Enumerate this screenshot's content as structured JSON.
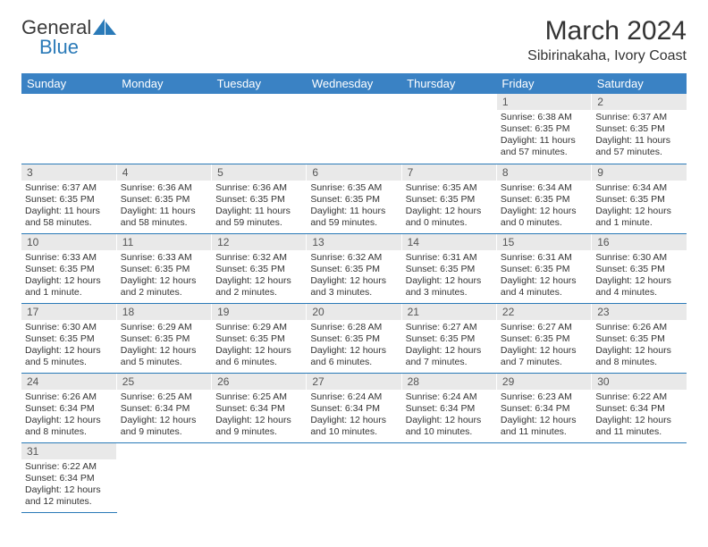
{
  "brand": {
    "part1": "General",
    "part2": "Blue"
  },
  "title": "March 2024",
  "location": "Sibirinakaha, Ivory Coast",
  "colors": {
    "header_bg": "#3a82c4",
    "header_text": "#ffffff",
    "row_divider": "#2a7ab8",
    "daynum_bg": "#e9e9e9",
    "text": "#333333",
    "brand_blue": "#2a7ab8",
    "brand_gray": "#3a3a3a",
    "background": "#ffffff"
  },
  "day_labels": [
    "Sunday",
    "Monday",
    "Tuesday",
    "Wednesday",
    "Thursday",
    "Friday",
    "Saturday"
  ],
  "weeks": [
    [
      null,
      null,
      null,
      null,
      null,
      {
        "n": "1",
        "sunrise": "6:38 AM",
        "sunset": "6:35 PM",
        "daylight": "11 hours and 57 minutes."
      },
      {
        "n": "2",
        "sunrise": "6:37 AM",
        "sunset": "6:35 PM",
        "daylight": "11 hours and 57 minutes."
      }
    ],
    [
      {
        "n": "3",
        "sunrise": "6:37 AM",
        "sunset": "6:35 PM",
        "daylight": "11 hours and 58 minutes."
      },
      {
        "n": "4",
        "sunrise": "6:36 AM",
        "sunset": "6:35 PM",
        "daylight": "11 hours and 58 minutes."
      },
      {
        "n": "5",
        "sunrise": "6:36 AM",
        "sunset": "6:35 PM",
        "daylight": "11 hours and 59 minutes."
      },
      {
        "n": "6",
        "sunrise": "6:35 AM",
        "sunset": "6:35 PM",
        "daylight": "11 hours and 59 minutes."
      },
      {
        "n": "7",
        "sunrise": "6:35 AM",
        "sunset": "6:35 PM",
        "daylight": "12 hours and 0 minutes."
      },
      {
        "n": "8",
        "sunrise": "6:34 AM",
        "sunset": "6:35 PM",
        "daylight": "12 hours and 0 minutes."
      },
      {
        "n": "9",
        "sunrise": "6:34 AM",
        "sunset": "6:35 PM",
        "daylight": "12 hours and 1 minute."
      }
    ],
    [
      {
        "n": "10",
        "sunrise": "6:33 AM",
        "sunset": "6:35 PM",
        "daylight": "12 hours and 1 minute."
      },
      {
        "n": "11",
        "sunrise": "6:33 AM",
        "sunset": "6:35 PM",
        "daylight": "12 hours and 2 minutes."
      },
      {
        "n": "12",
        "sunrise": "6:32 AM",
        "sunset": "6:35 PM",
        "daylight": "12 hours and 2 minutes."
      },
      {
        "n": "13",
        "sunrise": "6:32 AM",
        "sunset": "6:35 PM",
        "daylight": "12 hours and 3 minutes."
      },
      {
        "n": "14",
        "sunrise": "6:31 AM",
        "sunset": "6:35 PM",
        "daylight": "12 hours and 3 minutes."
      },
      {
        "n": "15",
        "sunrise": "6:31 AM",
        "sunset": "6:35 PM",
        "daylight": "12 hours and 4 minutes."
      },
      {
        "n": "16",
        "sunrise": "6:30 AM",
        "sunset": "6:35 PM",
        "daylight": "12 hours and 4 minutes."
      }
    ],
    [
      {
        "n": "17",
        "sunrise": "6:30 AM",
        "sunset": "6:35 PM",
        "daylight": "12 hours and 5 minutes."
      },
      {
        "n": "18",
        "sunrise": "6:29 AM",
        "sunset": "6:35 PM",
        "daylight": "12 hours and 5 minutes."
      },
      {
        "n": "19",
        "sunrise": "6:29 AM",
        "sunset": "6:35 PM",
        "daylight": "12 hours and 6 minutes."
      },
      {
        "n": "20",
        "sunrise": "6:28 AM",
        "sunset": "6:35 PM",
        "daylight": "12 hours and 6 minutes."
      },
      {
        "n": "21",
        "sunrise": "6:27 AM",
        "sunset": "6:35 PM",
        "daylight": "12 hours and 7 minutes."
      },
      {
        "n": "22",
        "sunrise": "6:27 AM",
        "sunset": "6:35 PM",
        "daylight": "12 hours and 7 minutes."
      },
      {
        "n": "23",
        "sunrise": "6:26 AM",
        "sunset": "6:35 PM",
        "daylight": "12 hours and 8 minutes."
      }
    ],
    [
      {
        "n": "24",
        "sunrise": "6:26 AM",
        "sunset": "6:34 PM",
        "daylight": "12 hours and 8 minutes."
      },
      {
        "n": "25",
        "sunrise": "6:25 AM",
        "sunset": "6:34 PM",
        "daylight": "12 hours and 9 minutes."
      },
      {
        "n": "26",
        "sunrise": "6:25 AM",
        "sunset": "6:34 PM",
        "daylight": "12 hours and 9 minutes."
      },
      {
        "n": "27",
        "sunrise": "6:24 AM",
        "sunset": "6:34 PM",
        "daylight": "12 hours and 10 minutes."
      },
      {
        "n": "28",
        "sunrise": "6:24 AM",
        "sunset": "6:34 PM",
        "daylight": "12 hours and 10 minutes."
      },
      {
        "n": "29",
        "sunrise": "6:23 AM",
        "sunset": "6:34 PM",
        "daylight": "12 hours and 11 minutes."
      },
      {
        "n": "30",
        "sunrise": "6:22 AM",
        "sunset": "6:34 PM",
        "daylight": "12 hours and 11 minutes."
      }
    ],
    [
      {
        "n": "31",
        "sunrise": "6:22 AM",
        "sunset": "6:34 PM",
        "daylight": "12 hours and 12 minutes."
      },
      null,
      null,
      null,
      null,
      null,
      null
    ]
  ],
  "labels": {
    "sunrise": "Sunrise:",
    "sunset": "Sunset:",
    "daylight": "Daylight:"
  }
}
